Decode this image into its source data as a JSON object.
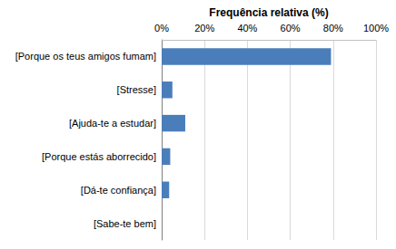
{
  "chart_data": {
    "type": "bar",
    "orientation": "horizontal",
    "x_label": "Frequência relativa (%)",
    "categories": [
      "[Porque os teus amigos fumam]",
      "[Stresse]",
      "[Ajuda-te a estudar]",
      "[Porque estás aborrecido]",
      "[Dá-te confiança]",
      "[Sabe-te bem]"
    ],
    "values": [
      79,
      5,
      11,
      4,
      3.5,
      0
    ],
    "color": "#4a7ebb",
    "xlim": [
      0,
      100
    ],
    "xticks": [
      {
        "value": 0,
        "label": "0%"
      },
      {
        "value": 20,
        "label": "20%"
      },
      {
        "value": 40,
        "label": "40%"
      },
      {
        "value": 60,
        "label": "60%"
      },
      {
        "value": 80,
        "label": "80%"
      },
      {
        "value": 100,
        "label": "100%"
      }
    ],
    "grid": true
  }
}
